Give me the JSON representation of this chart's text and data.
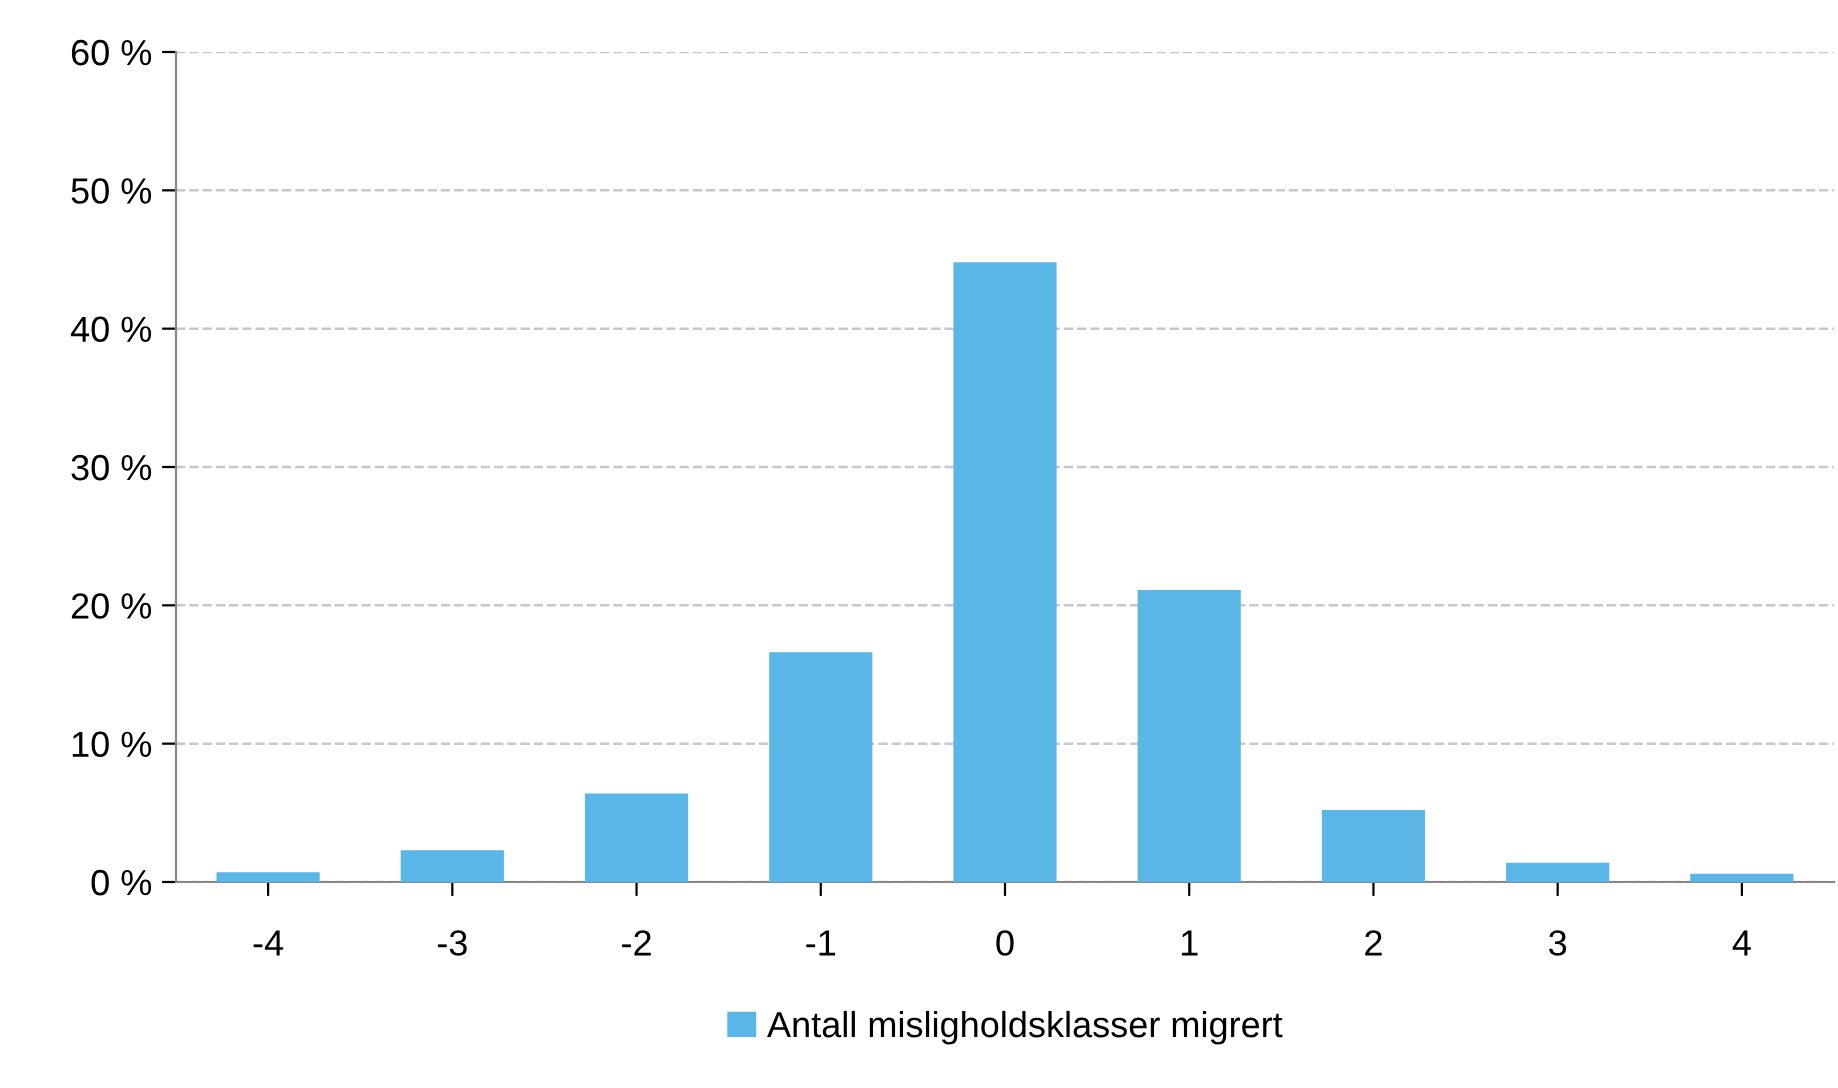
{
  "chart_data": {
    "type": "bar",
    "categories": [
      "-4",
      "-3",
      "-2",
      "-1",
      "0",
      "1",
      "2",
      "3",
      "4"
    ],
    "series": [
      {
        "name": "Antall misligholdsklasser migrert",
        "color": "#5ab6e6",
        "values": [
          0.7,
          2.3,
          6.4,
          16.6,
          44.8,
          21.1,
          5.2,
          1.4,
          0.6
        ]
      }
    ],
    "ylim": [
      0,
      60
    ],
    "yticks": [
      {
        "value": 0,
        "label": "0 %"
      },
      {
        "value": 10,
        "label": "10 %"
      },
      {
        "value": 20,
        "label": "20 %"
      },
      {
        "value": 30,
        "label": "30 %"
      },
      {
        "value": 40,
        "label": "40 %"
      },
      {
        "value": 50,
        "label": "50 %"
      },
      {
        "value": 60,
        "label": "60 %"
      }
    ],
    "grid": "y",
    "legend": "bottom"
  }
}
